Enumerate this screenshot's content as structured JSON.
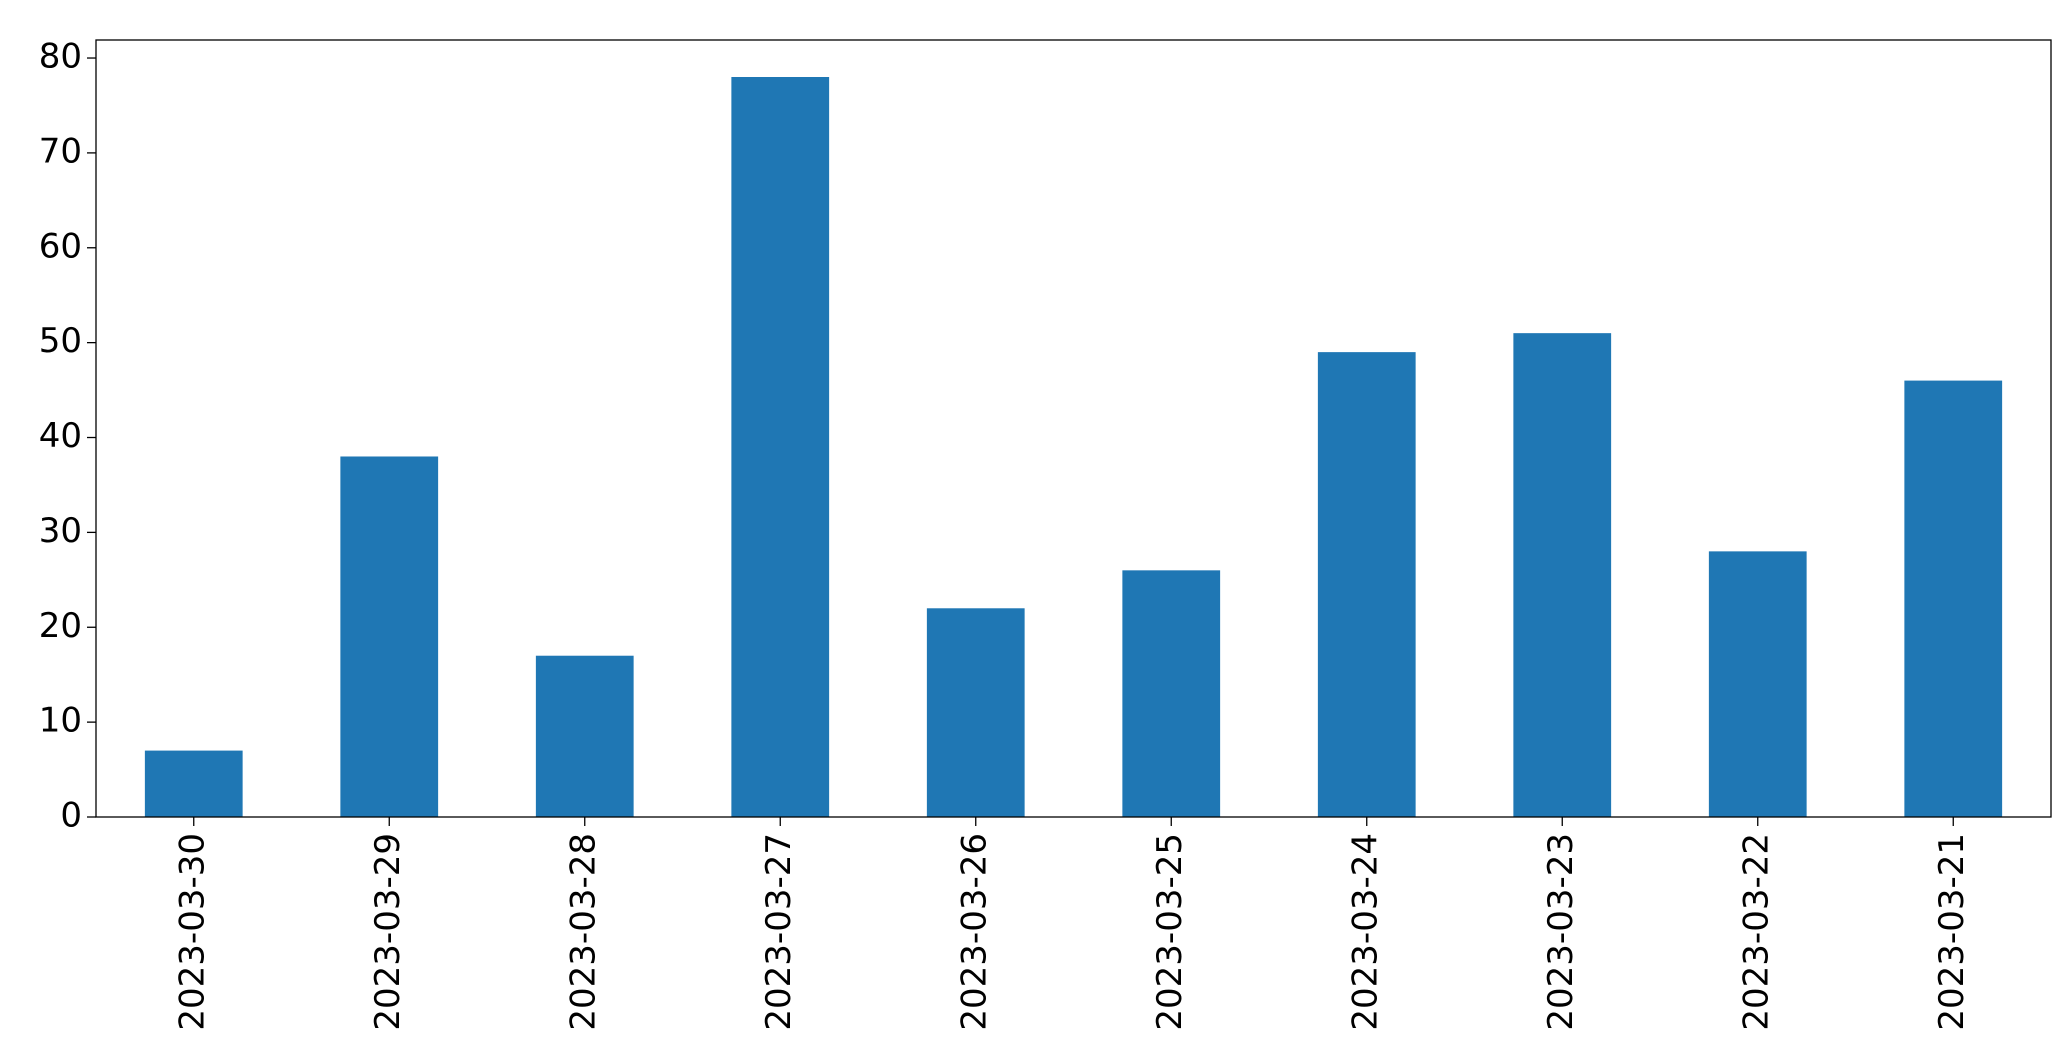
{
  "chart_data": {
    "type": "bar",
    "categories": [
      "2023-03-30",
      "2023-03-29",
      "2023-03-28",
      "2023-03-27",
      "2023-03-26",
      "2023-03-25",
      "2023-03-24",
      "2023-03-23",
      "2023-03-22",
      "2023-03-21"
    ],
    "values": [
      7,
      38,
      17,
      78,
      22,
      26,
      49,
      51,
      28,
      46
    ],
    "color": "#1f77b4",
    "ylim": [
      0,
      81.9
    ],
    "yticks": [
      0,
      10,
      20,
      30,
      40,
      50,
      60,
      70,
      80
    ],
    "grid": false
  }
}
